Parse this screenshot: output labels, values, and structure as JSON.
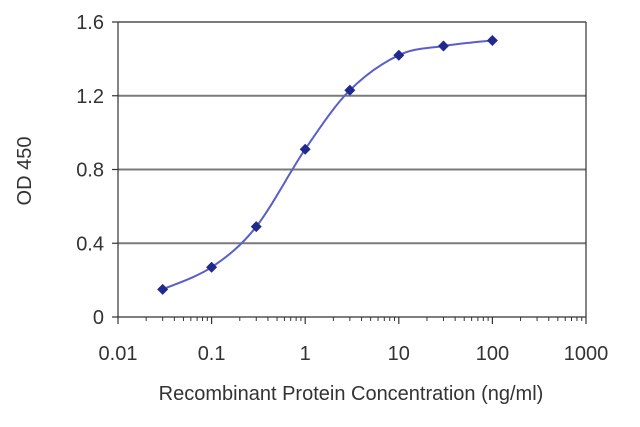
{
  "colors": {
    "series": "#1f2a8c",
    "line": "#5a5fc8",
    "grid": "#7a7a7a",
    "axis": "#333333",
    "text": "#333333"
  },
  "chart_data": {
    "type": "line",
    "title": "",
    "xlabel": "Recombinant Protein Concentration (ng/ml)",
    "ylabel": "OD 450",
    "xscale": "log",
    "xlim": [
      0.01,
      1000
    ],
    "ylim": [
      0,
      1.6
    ],
    "xticks": [
      "0.01",
      "0.1",
      "1",
      "10",
      "100",
      "1000"
    ],
    "yticks": [
      "0",
      "0.4",
      "0.8",
      "1.2",
      "1.6"
    ],
    "grid": "horizontal",
    "legend": "none",
    "series": [
      {
        "x": [
          0.03,
          0.1,
          0.3,
          1,
          3,
          10,
          30,
          100
        ],
        "y": [
          0.15,
          0.27,
          0.49,
          0.91,
          1.23,
          1.42,
          1.47,
          1.5
        ]
      }
    ]
  }
}
